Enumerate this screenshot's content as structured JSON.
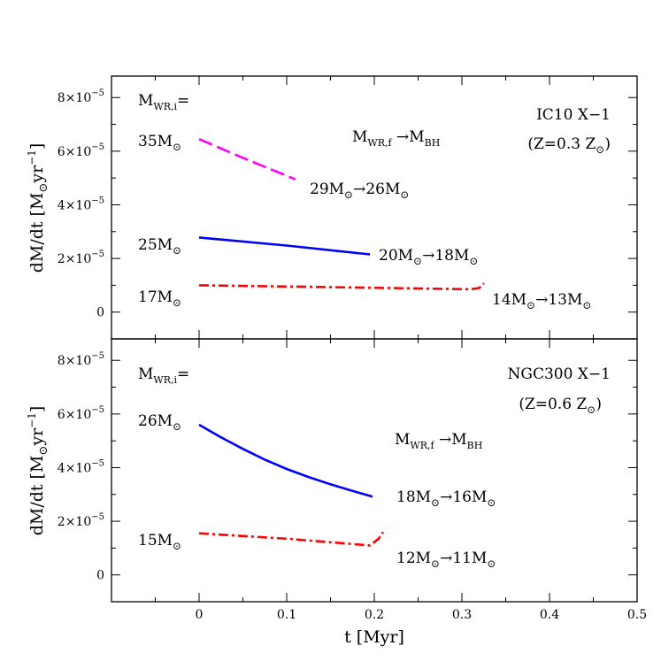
{
  "chart_data": [
    {
      "type": "line",
      "panel": "top",
      "system_label_line1": "IC10 X−1",
      "system_label_line2": "(Z=0.3 Z⊙)",
      "legend_header": "M_WR,i =",
      "mass_transition_label": "M_WR,f → M_BH",
      "ylabel": "dM/dt [M⊙ yr⁻¹]",
      "xlim": [
        -0.1,
        0.5
      ],
      "ylim": [
        -1e-05,
        8.8e-05
      ],
      "yticks": [
        {
          "value": 0,
          "label": "0"
        },
        {
          "value": 2e-05,
          "label": "2×10⁻⁵"
        },
        {
          "value": 4e-05,
          "label": "4×10⁻⁵"
        },
        {
          "value": 6e-05,
          "label": "6×10⁻⁵"
        },
        {
          "value": 8e-05,
          "label": "8×10⁻⁵"
        }
      ],
      "series": [
        {
          "initial_mass": "35M⊙",
          "final_mass": "29M⊙→26M⊙",
          "color": "#ff00ff",
          "style": "dashed",
          "x": [
            0.0,
            0.05,
            0.11
          ],
          "y": [
            6.45e-05,
            5.75e-05,
            4.95e-05
          ]
        },
        {
          "initial_mass": "25M⊙",
          "final_mass": "20M⊙→18M⊙",
          "color": "#0000ff",
          "style": "solid",
          "x": [
            0.0,
            0.1,
            0.195
          ],
          "y": [
            2.78e-05,
            2.48e-05,
            2.15e-05
          ]
        },
        {
          "initial_mass": "17M⊙",
          "final_mass": "14M⊙→13M⊙",
          "color": "#ff0000",
          "style": "dashdot",
          "x": [
            0.0,
            0.15,
            0.31,
            0.32,
            0.325
          ],
          "y": [
            1e-05,
            9.3e-06,
            8.5e-06,
            9e-06,
            1.08e-05
          ]
        }
      ]
    },
    {
      "type": "line",
      "panel": "bottom",
      "system_label_line1": "NGC300 X−1",
      "system_label_line2": "(Z=0.6 Z⊙)",
      "legend_header": "M_WR,i =",
      "mass_transition_label": "M_WR,f → M_BH",
      "xlabel": "t [Myr]",
      "ylabel": "dM/dt [M⊙ yr⁻¹]",
      "xlim": [
        -0.1,
        0.5
      ],
      "ylim": [
        -1e-05,
        8.8e-05
      ],
      "xticks": [
        {
          "value": 0,
          "label": "0"
        },
        {
          "value": 0.1,
          "label": "0.1"
        },
        {
          "value": 0.2,
          "label": "0.2"
        },
        {
          "value": 0.3,
          "label": "0.3"
        },
        {
          "value": 0.4,
          "label": "0.4"
        },
        {
          "value": 0.5,
          "label": "0.5"
        }
      ],
      "yticks": [
        {
          "value": 0,
          "label": "0"
        },
        {
          "value": 2e-05,
          "label": "2×10⁻⁵"
        },
        {
          "value": 4e-05,
          "label": "4×10⁻⁵"
        },
        {
          "value": 6e-05,
          "label": "6×10⁻⁵"
        },
        {
          "value": 8e-05,
          "label": "8×10⁻⁵"
        }
      ],
      "series": [
        {
          "initial_mass": "26M⊙",
          "final_mass": "18M⊙→16M⊙",
          "color": "#0000ff",
          "style": "solid",
          "x": [
            0.0,
            0.025,
            0.05,
            0.075,
            0.1,
            0.125,
            0.15,
            0.175,
            0.198
          ],
          "y": [
            5.6e-05,
            5.13e-05,
            4.7e-05,
            4.3e-05,
            3.95e-05,
            3.65e-05,
            3.38e-05,
            3.13e-05,
            2.92e-05
          ]
        },
        {
          "initial_mass": "15M⊙",
          "final_mass": "12M⊙→11M⊙",
          "color": "#ff0000",
          "style": "dashdot",
          "x": [
            0.0,
            0.1,
            0.195,
            0.205,
            0.21
          ],
          "y": [
            1.55e-05,
            1.35e-05,
            1.1e-05,
            1.35e-05,
            1.6e-05
          ]
        }
      ]
    }
  ]
}
